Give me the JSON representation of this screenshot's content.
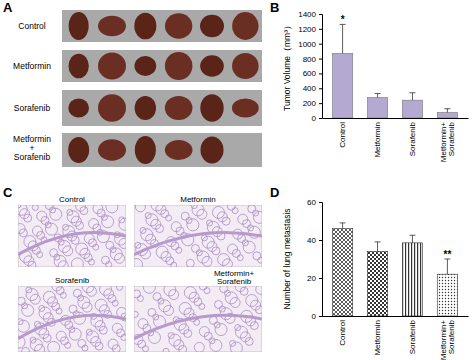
{
  "chart_data": [
    {
      "type": "bar",
      "panel": "B",
      "ylabel": "Tumor Volume（mm³）",
      "categories": [
        "Control",
        "Metformin",
        "Sorafenib",
        "Metformin+ Sorafenib"
      ],
      "values": [
        870,
        275,
        240,
        75
      ],
      "errors": [
        390,
        55,
        100,
        50
      ],
      "color": "#b3a9d1",
      "ylim": [
        0,
        1400
      ],
      "yticks": [
        0,
        200,
        400,
        600,
        800,
        1000,
        1200,
        1400
      ],
      "annotations": [
        {
          "text": "*",
          "category": "Control"
        }
      ]
    },
    {
      "type": "bar",
      "panel": "D",
      "ylabel": "Number of lung metastasis",
      "categories": [
        "Control",
        "Metformin",
        "Sorafenib",
        "Metformin+ Sorafenib"
      ],
      "values": [
        46,
        34,
        38.5,
        22
      ],
      "errors": [
        3,
        5,
        4,
        8
      ],
      "color": "#333333",
      "ylim": [
        0,
        60
      ],
      "yticks": [
        0,
        20,
        40,
        60
      ],
      "annotations": [
        {
          "text": "**",
          "category": "Metformin+ Sorafenib"
        }
      ]
    }
  ],
  "figure": {
    "panel_a": "A",
    "panel_c": "C",
    "photo_rows": [
      "Control",
      "Metformin",
      "Sorafenib",
      "Metformin + Sorafenib"
    ],
    "tumor_counts": [
      6,
      6,
      6,
      5
    ],
    "histology_labels": [
      "Control",
      "Metformin",
      "Sorafenib",
      "Metformin+ Sorafenib"
    ]
  }
}
